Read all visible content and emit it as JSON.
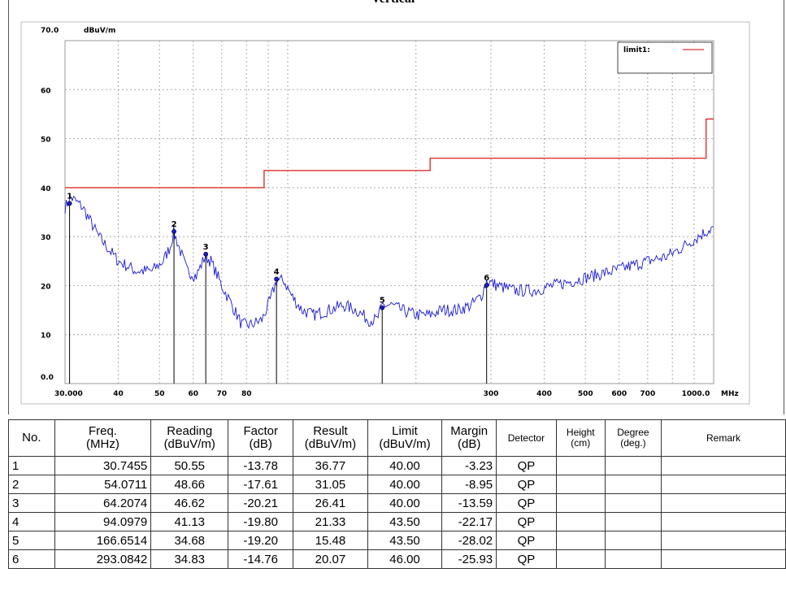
{
  "page_title": "Vertical",
  "chart_data": {
    "type": "line",
    "y_unit_label": "dBuV/m",
    "x_unit_label": "MHz",
    "x_scale": "log",
    "xlim": [
      30,
      1000
    ],
    "ylim": [
      0,
      70
    ],
    "y_ticks": [
      "70.0",
      "60",
      "50",
      "40",
      "30",
      "20",
      "10",
      "0.0"
    ],
    "y_tick_values": [
      70,
      60,
      50,
      40,
      30,
      20,
      10,
      0
    ],
    "x_ticks": [
      "30.000",
      "40",
      "50",
      "60",
      "70",
      "80",
      "300",
      "400",
      "500",
      "600",
      "700",
      "1000.0"
    ],
    "x_tick_values": [
      30,
      40,
      50,
      60,
      70,
      80,
      300,
      400,
      500,
      600,
      700,
      1000
    ],
    "grid": true,
    "legend": {
      "label": "limit1:",
      "position": "top-right"
    },
    "series": [
      {
        "name": "limit1:",
        "color": "#e03030",
        "x": [
          30,
          88,
          88,
          216,
          216,
          960,
          960,
          1000
        ],
        "y": [
          40,
          40,
          43.5,
          43.5,
          46,
          46,
          54,
          54
        ]
      },
      {
        "color": "#1a1ad0",
        "x": [
          30,
          31,
          33,
          36,
          40,
          44,
          48,
          51,
          53,
          54,
          56,
          58,
          61,
          64,
          66,
          70,
          74,
          78,
          82,
          87,
          91,
          94,
          98,
          102,
          108,
          115,
          125,
          135,
          145,
          155,
          162,
          167,
          175,
          185,
          200,
          215,
          230,
          250,
          270,
          285,
          293,
          310,
          340,
          380,
          420,
          470,
          520,
          580,
          640,
          700,
          780,
          850,
          920,
          1000
        ],
        "y": [
          36,
          38,
          36,
          30,
          25,
          23,
          23,
          25,
          28,
          31,
          27,
          23,
          22,
          26,
          25,
          20,
          16,
          12,
          12,
          13,
          17,
          21,
          21,
          18,
          15,
          14,
          15,
          16,
          15,
          13,
          13,
          16,
          16,
          15,
          14,
          14,
          15,
          15,
          16,
          18,
          21,
          20,
          19,
          19,
          20,
          21,
          22,
          23,
          24,
          25,
          26,
          28,
          30,
          32
        ]
      }
    ],
    "markers": [
      {
        "label": "1",
        "freq": 30.7455,
        "result": 36.77
      },
      {
        "label": "2",
        "freq": 54.0711,
        "result": 31.05
      },
      {
        "label": "3",
        "freq": 64.2074,
        "result": 26.41
      },
      {
        "label": "4",
        "freq": 94.0979,
        "result": 21.33
      },
      {
        "label": "5",
        "freq": 166.6514,
        "result": 15.48
      },
      {
        "label": "6",
        "freq": 293.0842,
        "result": 20.07
      }
    ]
  },
  "table": {
    "headers": [
      {
        "l1": "No.",
        "l2": ""
      },
      {
        "l1": "Freq.",
        "l2": "(MHz)"
      },
      {
        "l1": "Reading",
        "l2": "(dBuV/m)"
      },
      {
        "l1": "Factor",
        "l2": "(dB)"
      },
      {
        "l1": "Result",
        "l2": "(dBuV/m)"
      },
      {
        "l1": "Limit",
        "l2": "(dBuV/m)"
      },
      {
        "l1": "Margin",
        "l2": "(dB)"
      },
      {
        "l1": "Detector",
        "l2": ""
      },
      {
        "l1": "Height",
        "l2": "(cm)"
      },
      {
        "l1": "Degree",
        "l2": "(deg.)"
      },
      {
        "l1": "Remark",
        "l2": ""
      }
    ],
    "rows": [
      {
        "no": "1",
        "freq": "30.7455",
        "reading": "50.55",
        "factor": "-13.78",
        "result": "36.77",
        "limit": "40.00",
        "margin": "-3.23",
        "detector": "QP",
        "height": "",
        "degree": "",
        "remark": ""
      },
      {
        "no": "2",
        "freq": "54.0711",
        "reading": "48.66",
        "factor": "-17.61",
        "result": "31.05",
        "limit": "40.00",
        "margin": "-8.95",
        "detector": "QP",
        "height": "",
        "degree": "",
        "remark": ""
      },
      {
        "no": "3",
        "freq": "64.2074",
        "reading": "46.62",
        "factor": "-20.21",
        "result": "26.41",
        "limit": "40.00",
        "margin": "-13.59",
        "detector": "QP",
        "height": "",
        "degree": "",
        "remark": ""
      },
      {
        "no": "4",
        "freq": "94.0979",
        "reading": "41.13",
        "factor": "-19.80",
        "result": "21.33",
        "limit": "43.50",
        "margin": "-22.17",
        "detector": "QP",
        "height": "",
        "degree": "",
        "remark": ""
      },
      {
        "no": "5",
        "freq": "166.6514",
        "reading": "34.68",
        "factor": "-19.20",
        "result": "15.48",
        "limit": "43.50",
        "margin": "-28.02",
        "detector": "QP",
        "height": "",
        "degree": "",
        "remark": ""
      },
      {
        "no": "6",
        "freq": "293.0842",
        "reading": "34.83",
        "factor": "-14.76",
        "result": "20.07",
        "limit": "46.00",
        "margin": "-25.93",
        "detector": "QP",
        "height": "",
        "degree": "",
        "remark": ""
      }
    ]
  }
}
